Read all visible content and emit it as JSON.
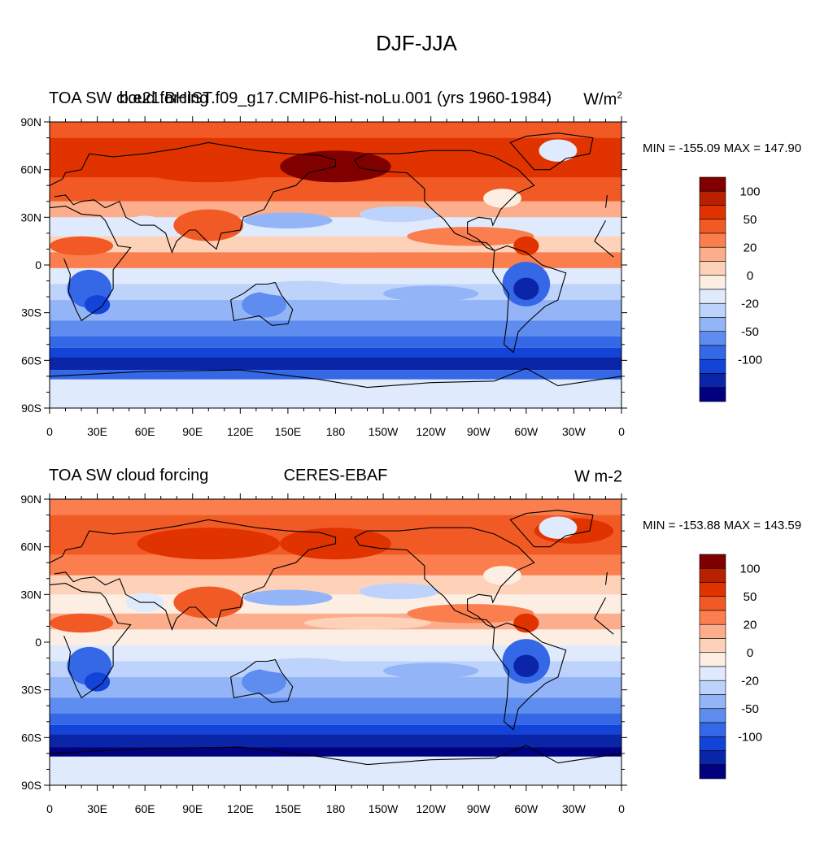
{
  "title": "DJF-JJA",
  "panels": [
    {
      "left_title": "TOA SW cloud forcing",
      "center_title": "b.e21.BHIST.f09_g17.CMIP6-hist-noLu.001 (yrs 1960-1984)",
      "right_title": "W/m",
      "right_title_sup": "2",
      "minmax": "MIN = -155.09 MAX = 147.90"
    },
    {
      "left_title": "TOA SW cloud forcing",
      "center_title": "CERES-EBAF",
      "right_title": "W m-2",
      "right_title_sup": "",
      "minmax": "MIN = -153.88 MAX = 143.59"
    }
  ],
  "lat_labels": [
    "90N",
    "60N",
    "30N",
    "0",
    "30S",
    "60S",
    "90S"
  ],
  "lon_labels": [
    "0",
    "30E",
    "60E",
    "90E",
    "120E",
    "150E",
    "180",
    "150W",
    "120W",
    "90W",
    "60W",
    "30W",
    "0"
  ],
  "colorbar": {
    "colors": [
      "#800000",
      "#b82100",
      "#e03300",
      "#f25a25",
      "#fa7e4e",
      "#fcad8c",
      "#fdd2b8",
      "#fdeee4",
      "#dfeafc",
      "#bdd3fb",
      "#93b5f7",
      "#5e8cef",
      "#3568e6",
      "#1244da",
      "#0a25a8",
      "#000080"
    ],
    "labels": [
      "100",
      "50",
      "20",
      "0",
      "-20",
      "-50",
      "-100"
    ]
  }
}
